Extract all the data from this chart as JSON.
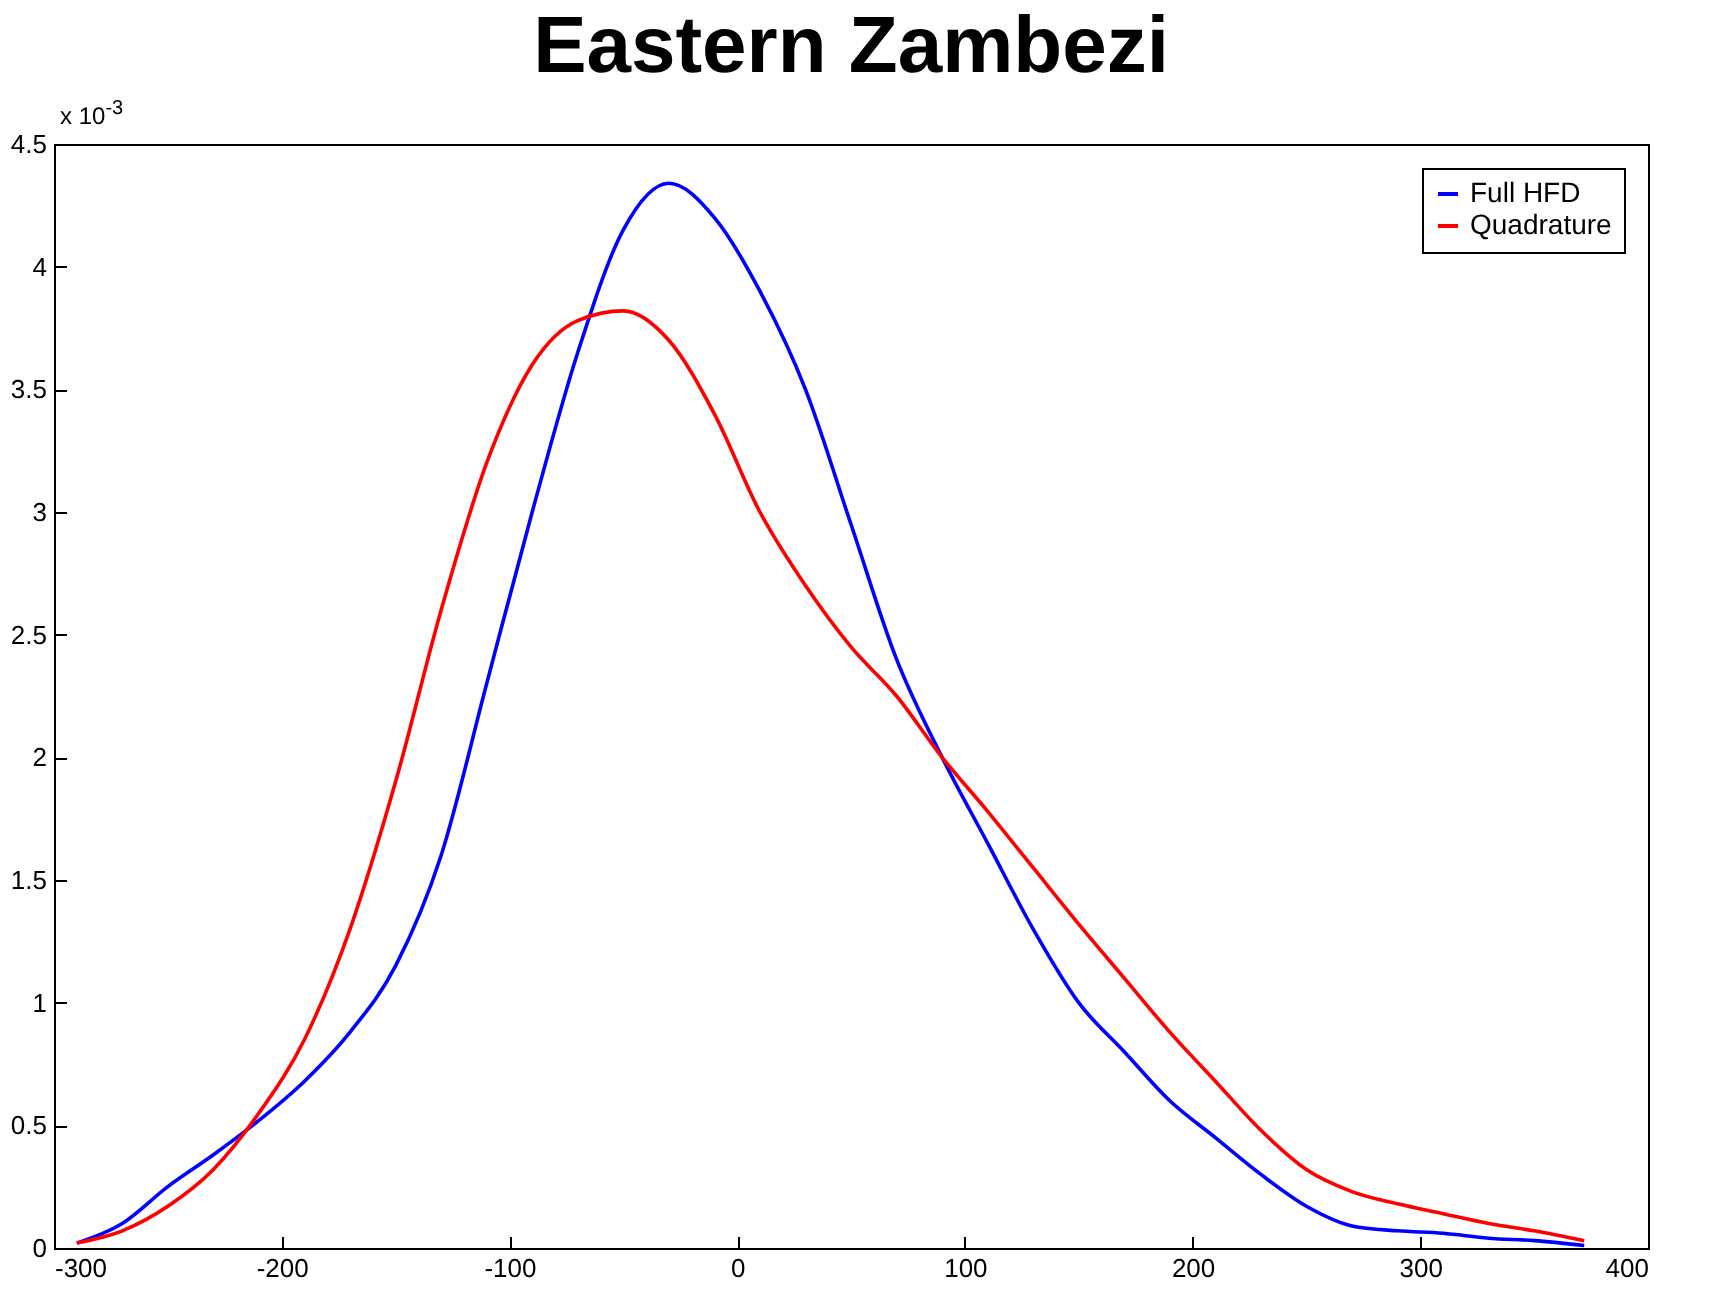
{
  "chart_data": {
    "type": "line",
    "title": "Eastern Zambezi",
    "annotations": [
      "x 10$^{-3}$"
    ],
    "x": [
      -290,
      -270,
      -250,
      -230,
      -210,
      -190,
      -170,
      -150,
      -130,
      -110,
      -90,
      -70,
      -50,
      -30,
      -10,
      10,
      30,
      50,
      70,
      90,
      110,
      130,
      150,
      170,
      190,
      210,
      230,
      250,
      270,
      290,
      310,
      330,
      350,
      372
    ],
    "series": [
      {
        "name": "Full HFD",
        "color": "#0000ff",
        "values": [
          0.02,
          0.1,
          0.25,
          0.38,
          0.52,
          0.68,
          0.88,
          1.15,
          1.6,
          2.3,
          3.0,
          3.65,
          4.15,
          4.34,
          4.2,
          3.9,
          3.5,
          2.95,
          2.4,
          2.0,
          1.65,
          1.3,
          1.0,
          0.8,
          0.6,
          0.45,
          0.3,
          0.17,
          0.09,
          0.07,
          0.06,
          0.04,
          0.03,
          0.01
        ]
      },
      {
        "name": "Quadrature",
        "color": "#ff0000",
        "values": [
          0.02,
          0.07,
          0.17,
          0.32,
          0.55,
          0.85,
          1.3,
          1.9,
          2.6,
          3.2,
          3.6,
          3.78,
          3.82,
          3.7,
          3.4,
          3.0,
          2.7,
          2.45,
          2.25,
          2.0,
          1.78,
          1.55,
          1.32,
          1.1,
          0.88,
          0.68,
          0.48,
          0.32,
          0.23,
          0.18,
          0.14,
          0.1,
          0.07,
          0.03
        ]
      }
    ],
    "xlim": [
      -300,
      400
    ],
    "xticks": [
      -300,
      -200,
      -100,
      0,
      100,
      200,
      300,
      400
    ],
    "ylim": [
      0,
      4.5
    ],
    "yticks": [
      0,
      0.5,
      1,
      1.5,
      2,
      2.5,
      3,
      3.5,
      4,
      4.5
    ],
    "grid": false,
    "legend": "top right",
    "marker": "none",
    "line_style": "solid"
  }
}
